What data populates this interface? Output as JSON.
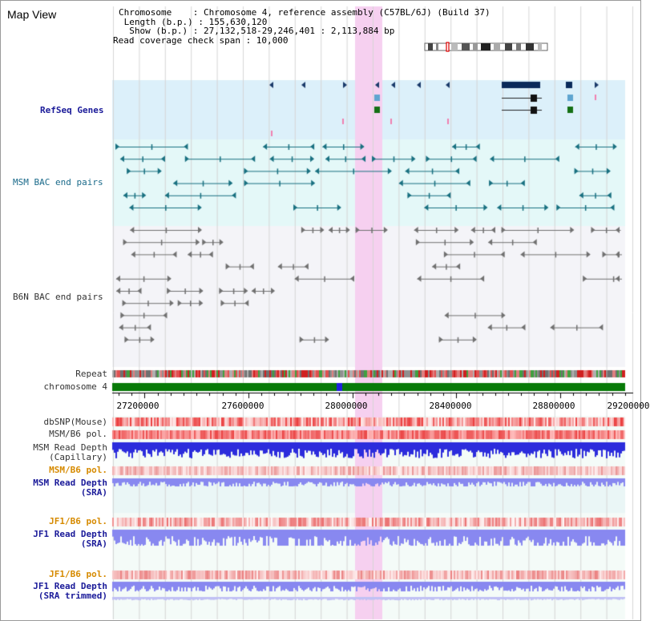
{
  "title": "Map View",
  "header": {
    "line1": "Chromosome    : Chromosome 4, reference assembly (C57BL/6J) (Build 37)",
    "line2": " Length (b.p.) : 155,630,120",
    "line3": "  Show (b.p.) : 27,132,518-29,246,401 : 2,113,884 bp",
    "line4": "Read coverage check span : 10,000"
  },
  "tracks": {
    "refseq": "RefSeq Genes",
    "msm_bac": "MSM BAC end pairs",
    "b6n_bac": "B6N BAC end pairs",
    "repeat": "Repeat",
    "chromosome": "chromosome 4",
    "dbsnp": "dbSNP(Mouse)",
    "msm_b6_pol": "MSM/B6 pol.",
    "msm_depth_cap_1": "MSM Read Depth",
    "msm_depth_cap_2": "(Capillary)",
    "msm_b6_pol_sra": "MSM/B6 pol.",
    "msm_depth_sra_1": "MSM Read Depth",
    "msm_depth_sra_2": "(SRA)",
    "jf1_b6_pol": "JF1/B6 pol.",
    "jf1_depth_1": "JF1 Read Depth",
    "jf1_depth_2": "(SRA)",
    "jf1_b6_pol_t": "JF1/B6 pol.",
    "jf1_depth_t_1": "JF1 Read Depth",
    "jf1_depth_t_2": "(SRA trimmed)"
  },
  "axis_ticks": [
    "27200000",
    "27600000",
    "28000000",
    "28400000",
    "28800000",
    "29200000"
  ],
  "colors": {
    "refseq_bg": "#dcf0fa",
    "msm_bg": "#e4f8f8",
    "b6n_bg": "#f4f4f8",
    "highlight": "#f6d0f0",
    "chrom_green": "#087a08",
    "depth_blue": "#2c2cdc",
    "depth_light": "#8888f0"
  }
}
